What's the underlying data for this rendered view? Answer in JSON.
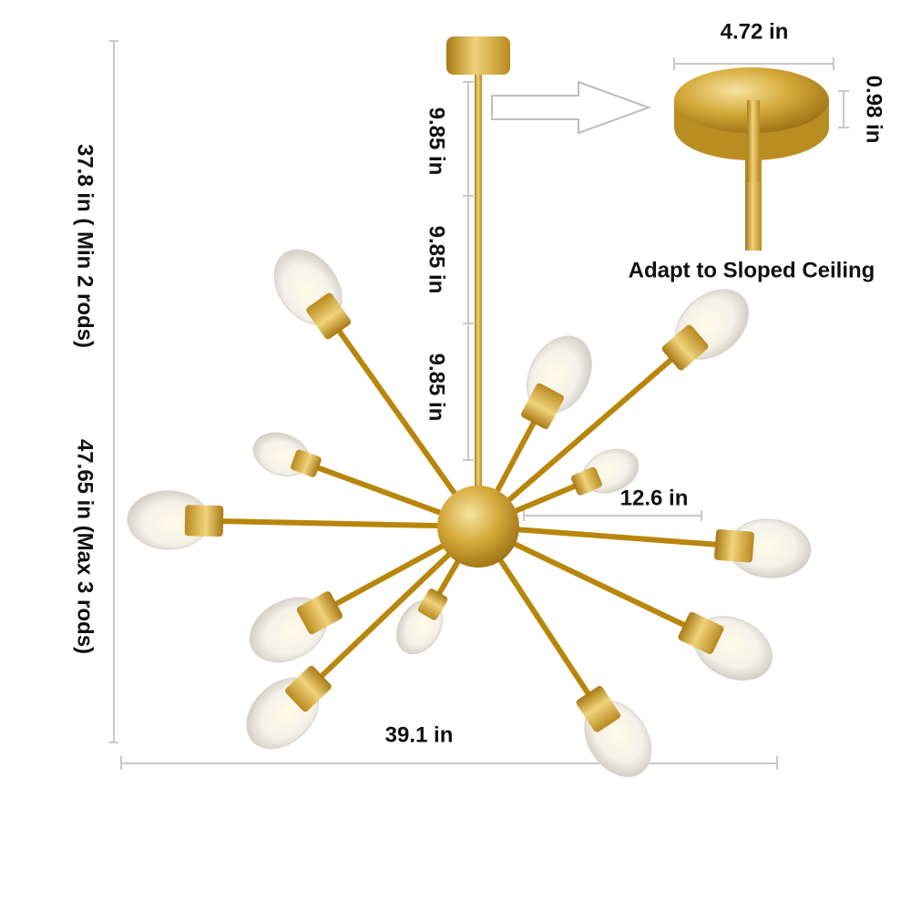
{
  "dimensions": {
    "canopy_width": "4.72 in",
    "canopy_height": "0.98 in",
    "canopy_note": "Adapt to Sloped Ceiling",
    "rod_lengths": [
      "9.85 in",
      "9.85 in",
      "9.85 in"
    ],
    "height_min": "37.8 in ( Min 2 rods)",
    "height_max": "47.65 in (Max 3 rods)",
    "arm_length": "12.6 in",
    "total_width": "39.1 in"
  }
}
